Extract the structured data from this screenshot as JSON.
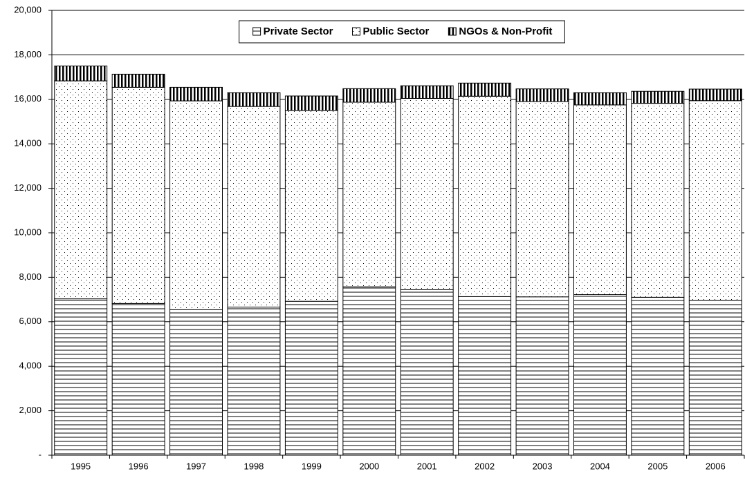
{
  "chart_data": {
    "type": "stacked-bar",
    "categories": [
      "1995",
      "1996",
      "1997",
      "1998",
      "1999",
      "2000",
      "2001",
      "2002",
      "2003",
      "2004",
      "2005",
      "2006"
    ],
    "series": [
      {
        "name": "Private Sector",
        "color": "#000000",
        "pattern": "horizontal",
        "values": [
          7030,
          6820,
          6540,
          6660,
          6920,
          7570,
          7440,
          7130,
          7120,
          7220,
          7100,
          6960
        ]
      },
      {
        "name": "Public Sector",
        "color": "#000000",
        "pattern": "dots",
        "values": [
          9800,
          9720,
          9390,
          9020,
          8580,
          8300,
          8600,
          9010,
          8780,
          8530,
          8720,
          8980
        ]
      },
      {
        "name": "NGOs & Non-Profit",
        "color": "#000000",
        "pattern": "vertical",
        "values": [
          670,
          590,
          610,
          620,
          650,
          610,
          570,
          590,
          570,
          550,
          540,
          520
        ]
      }
    ],
    "ylim": [
      0,
      20000
    ],
    "yticks": [
      {
        "value": 0,
        "label": "-"
      },
      {
        "value": 2000,
        "label": "2,000"
      },
      {
        "value": 4000,
        "label": "4,000"
      },
      {
        "value": 6000,
        "label": "6,000"
      },
      {
        "value": 8000,
        "label": "8,000"
      },
      {
        "value": 10000,
        "label": "10,000"
      },
      {
        "value": 12000,
        "label": "12,000"
      },
      {
        "value": 14000,
        "label": "14,000"
      },
      {
        "value": 16000,
        "label": "16,000"
      },
      {
        "value": 18000,
        "label": "18,000"
      },
      {
        "value": 20000,
        "label": "20,000"
      }
    ],
    "grid": true,
    "legend": "top"
  }
}
